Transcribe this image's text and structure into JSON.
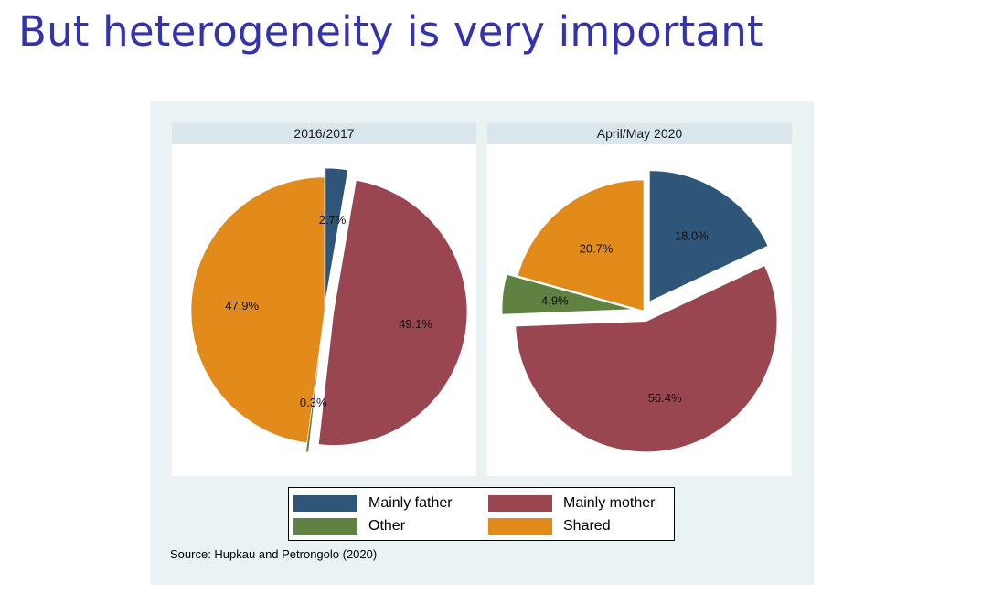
{
  "slide": {
    "title": "But heterogeneity is very important",
    "source": "Source: Hupkau and Petrongolo (2020)"
  },
  "colors": {
    "title": "#3333b2",
    "Mainly father": "#2f5579",
    "Mainly mother": "#9a4650",
    "Other": "#5f8142",
    "Shared": "#e38b1a"
  },
  "chart_data": [
    {
      "type": "pie",
      "title": "2016/2017",
      "categories": [
        "Mainly father",
        "Mainly mother",
        "Other",
        "Shared"
      ],
      "values": [
        2.7,
        49.1,
        0.3,
        47.9
      ],
      "labels": [
        "2.7%",
        "49.1%",
        "0.3%",
        "47.9%"
      ],
      "exploded": [
        true,
        true,
        true,
        false
      ],
      "start_angle": "12 o'clock",
      "direction": "clockwise"
    },
    {
      "type": "pie",
      "title": "April/May 2020",
      "categories": [
        "Mainly father",
        "Mainly mother",
        "Other",
        "Shared"
      ],
      "values": [
        18.0,
        56.4,
        4.9,
        20.7
      ],
      "labels": [
        "18.0%",
        "56.4%",
        "4.9%",
        "20.7%"
      ],
      "exploded": [
        true,
        true,
        true,
        false
      ],
      "start_angle": "12 o'clock",
      "direction": "clockwise"
    }
  ],
  "legend": {
    "placement": "bottom-center",
    "items": [
      {
        "label": "Mainly father",
        "key": "Mainly father"
      },
      {
        "label": "Mainly mother",
        "key": "Mainly mother"
      },
      {
        "label": "Other",
        "key": "Other"
      },
      {
        "label": "Shared",
        "key": "Shared"
      }
    ]
  }
}
